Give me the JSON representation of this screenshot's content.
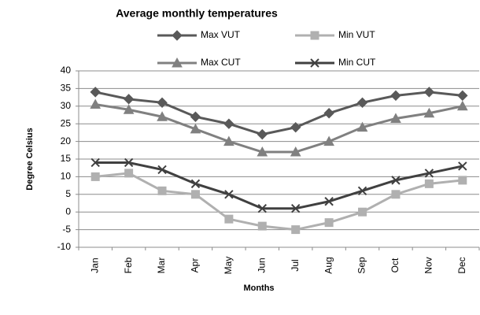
{
  "chart_data": {
    "type": "line",
    "title": "Average monthly temperatures",
    "x_label": "Months",
    "y_label": "Degree Celsius",
    "categories": [
      "Jan",
      "Feb",
      "Mar",
      "Apr",
      "May",
      "Jun",
      "Jul",
      "Aug",
      "Sep",
      "Oct",
      "Nov",
      "Dec"
    ],
    "series": [
      {
        "name": "Max VUT",
        "color": "#595959",
        "marker": "diamond",
        "values": [
          34,
          32,
          31,
          27,
          25,
          22,
          24,
          28,
          31,
          33,
          34,
          33
        ]
      },
      {
        "name": "Min VUT",
        "color": "#b0b0b0",
        "marker": "square",
        "values": [
          10,
          11,
          6,
          5,
          -2,
          -4,
          -5,
          -3,
          0,
          5,
          8,
          9
        ]
      },
      {
        "name": "Max CUT",
        "color": "#808080",
        "marker": "triangle",
        "values": [
          30.5,
          29,
          27,
          23.5,
          20,
          17,
          17,
          20,
          24,
          26.5,
          28,
          30
        ]
      },
      {
        "name": "Min CUT",
        "color": "#404040",
        "marker": "x",
        "values": [
          14,
          14,
          12,
          8,
          5,
          1,
          1,
          3,
          6,
          9,
          11,
          13
        ]
      }
    ],
    "ylim": [
      -10,
      40
    ],
    "yticks": [
      -10,
      -5,
      0,
      5,
      10,
      15,
      20,
      25,
      30,
      35,
      40
    ],
    "grid": true,
    "legend": "top"
  }
}
